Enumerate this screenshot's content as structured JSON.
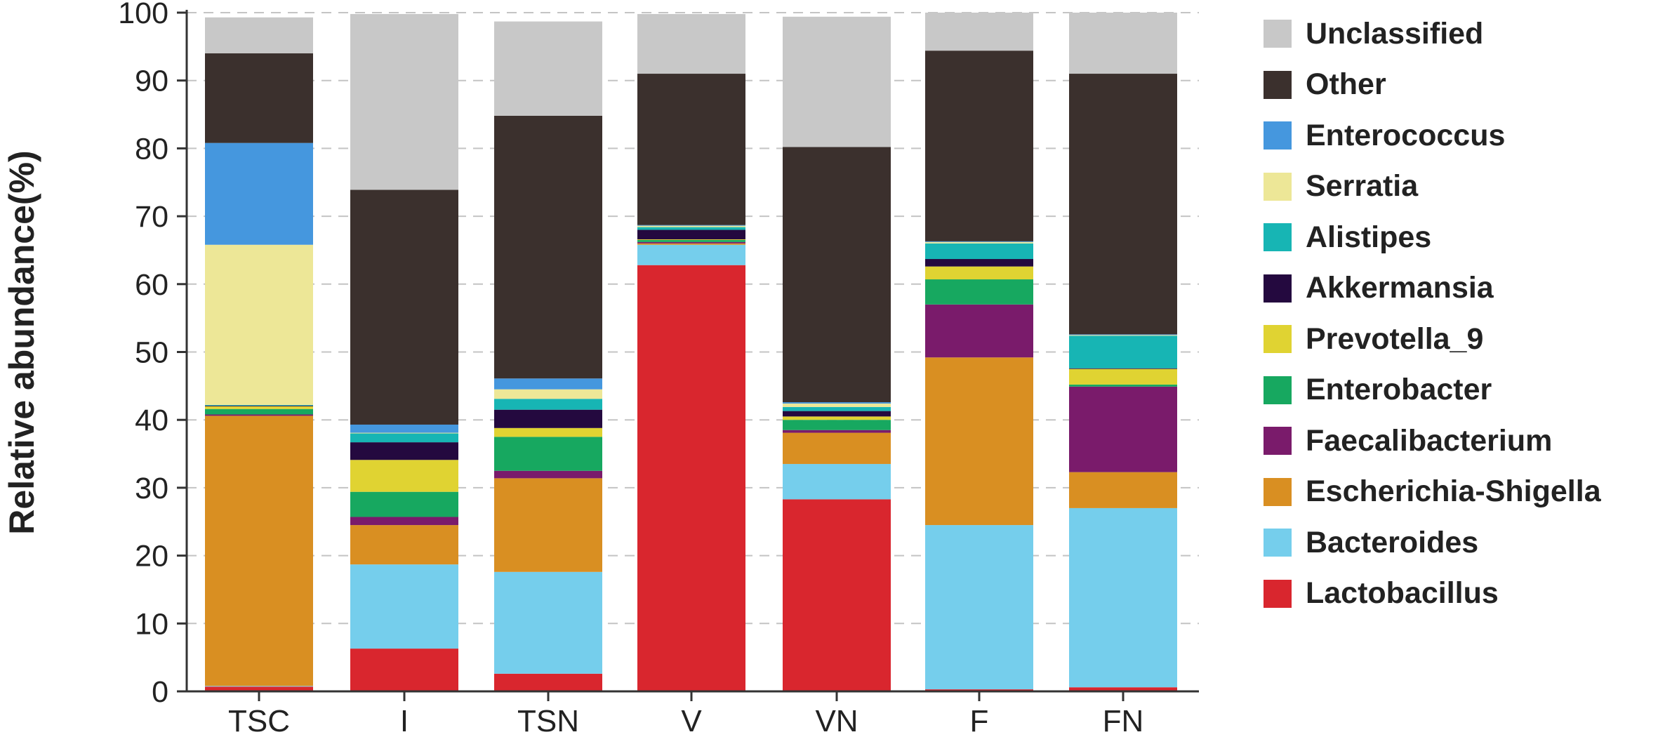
{
  "chart_data": {
    "type": "bar",
    "stacked": true,
    "title": "",
    "xlabel": "",
    "ylabel": "Relative abundance(%)",
    "ylim": [
      0,
      100
    ],
    "yticks": [
      0,
      10,
      20,
      30,
      40,
      50,
      60,
      70,
      80,
      90,
      100
    ],
    "grid": "horizontal dashed",
    "legend_position": "right",
    "categories": [
      "TSC",
      "I",
      "TSN",
      "V",
      "VN",
      "F",
      "FN"
    ],
    "series": [
      {
        "name": "Lactobacillus",
        "color": "#d9262e",
        "values": [
          0.7,
          6.3,
          2.6,
          62.8,
          28.3,
          0.3,
          0.6
        ]
      },
      {
        "name": "Bacteroides",
        "color": "#75ceec",
        "values": [
          0.1,
          12.4,
          15.0,
          3.0,
          5.2,
          24.2,
          26.4
        ]
      },
      {
        "name": "Escherichia-Shigella",
        "color": "#d98f22",
        "values": [
          39.8,
          5.8,
          13.8,
          0.2,
          4.6,
          24.7,
          5.3
        ]
      },
      {
        "name": "Faecalibacterium",
        "color": "#7a1b6b",
        "values": [
          0.2,
          1.2,
          1.1,
          0.2,
          0.4,
          7.8,
          12.6
        ]
      },
      {
        "name": "Enterobacter",
        "color": "#17a860",
        "values": [
          0.8,
          3.7,
          5.0,
          0.3,
          1.5,
          3.7,
          0.3
        ]
      },
      {
        "name": "Prevotella_9",
        "color": "#e0d332",
        "values": [
          0.4,
          4.7,
          1.3,
          0.1,
          0.5,
          1.9,
          2.3
        ]
      },
      {
        "name": "Akkermansia",
        "color": "#24093f",
        "values": [
          0.1,
          2.6,
          2.7,
          1.4,
          0.8,
          1.1,
          0.1
        ]
      },
      {
        "name": "Alistipes",
        "color": "#17b5b4",
        "values": [
          0.1,
          1.3,
          1.6,
          0.4,
          0.6,
          2.3,
          4.8
        ]
      },
      {
        "name": "Serratia",
        "color": "#ede797",
        "values": [
          23.6,
          0.1,
          1.4,
          0.2,
          0.5,
          0.2,
          0.1
        ]
      },
      {
        "name": "Enterococcus",
        "color": "#4597de",
        "values": [
          15.0,
          1.2,
          1.6,
          0.1,
          0.2,
          0.1,
          0.1
        ]
      },
      {
        "name": "Other",
        "color": "#3b302d",
        "values": [
          13.2,
          34.6,
          38.7,
          22.3,
          37.6,
          28.1,
          38.4
        ]
      },
      {
        "name": "Unclassified",
        "color": "#c8c8c8",
        "values": [
          5.3,
          25.9,
          13.9,
          8.8,
          19.2,
          5.6,
          9.0
        ]
      }
    ]
  },
  "legend_order": [
    "Unclassified",
    "Other",
    "Enterococcus",
    "Serratia",
    "Alistipes",
    "Akkermansia",
    "Prevotella_9",
    "Enterobacter",
    "Faecalibacterium",
    "Escherichia-Shigella",
    "Bacteroides",
    "Lactobacillus"
  ]
}
